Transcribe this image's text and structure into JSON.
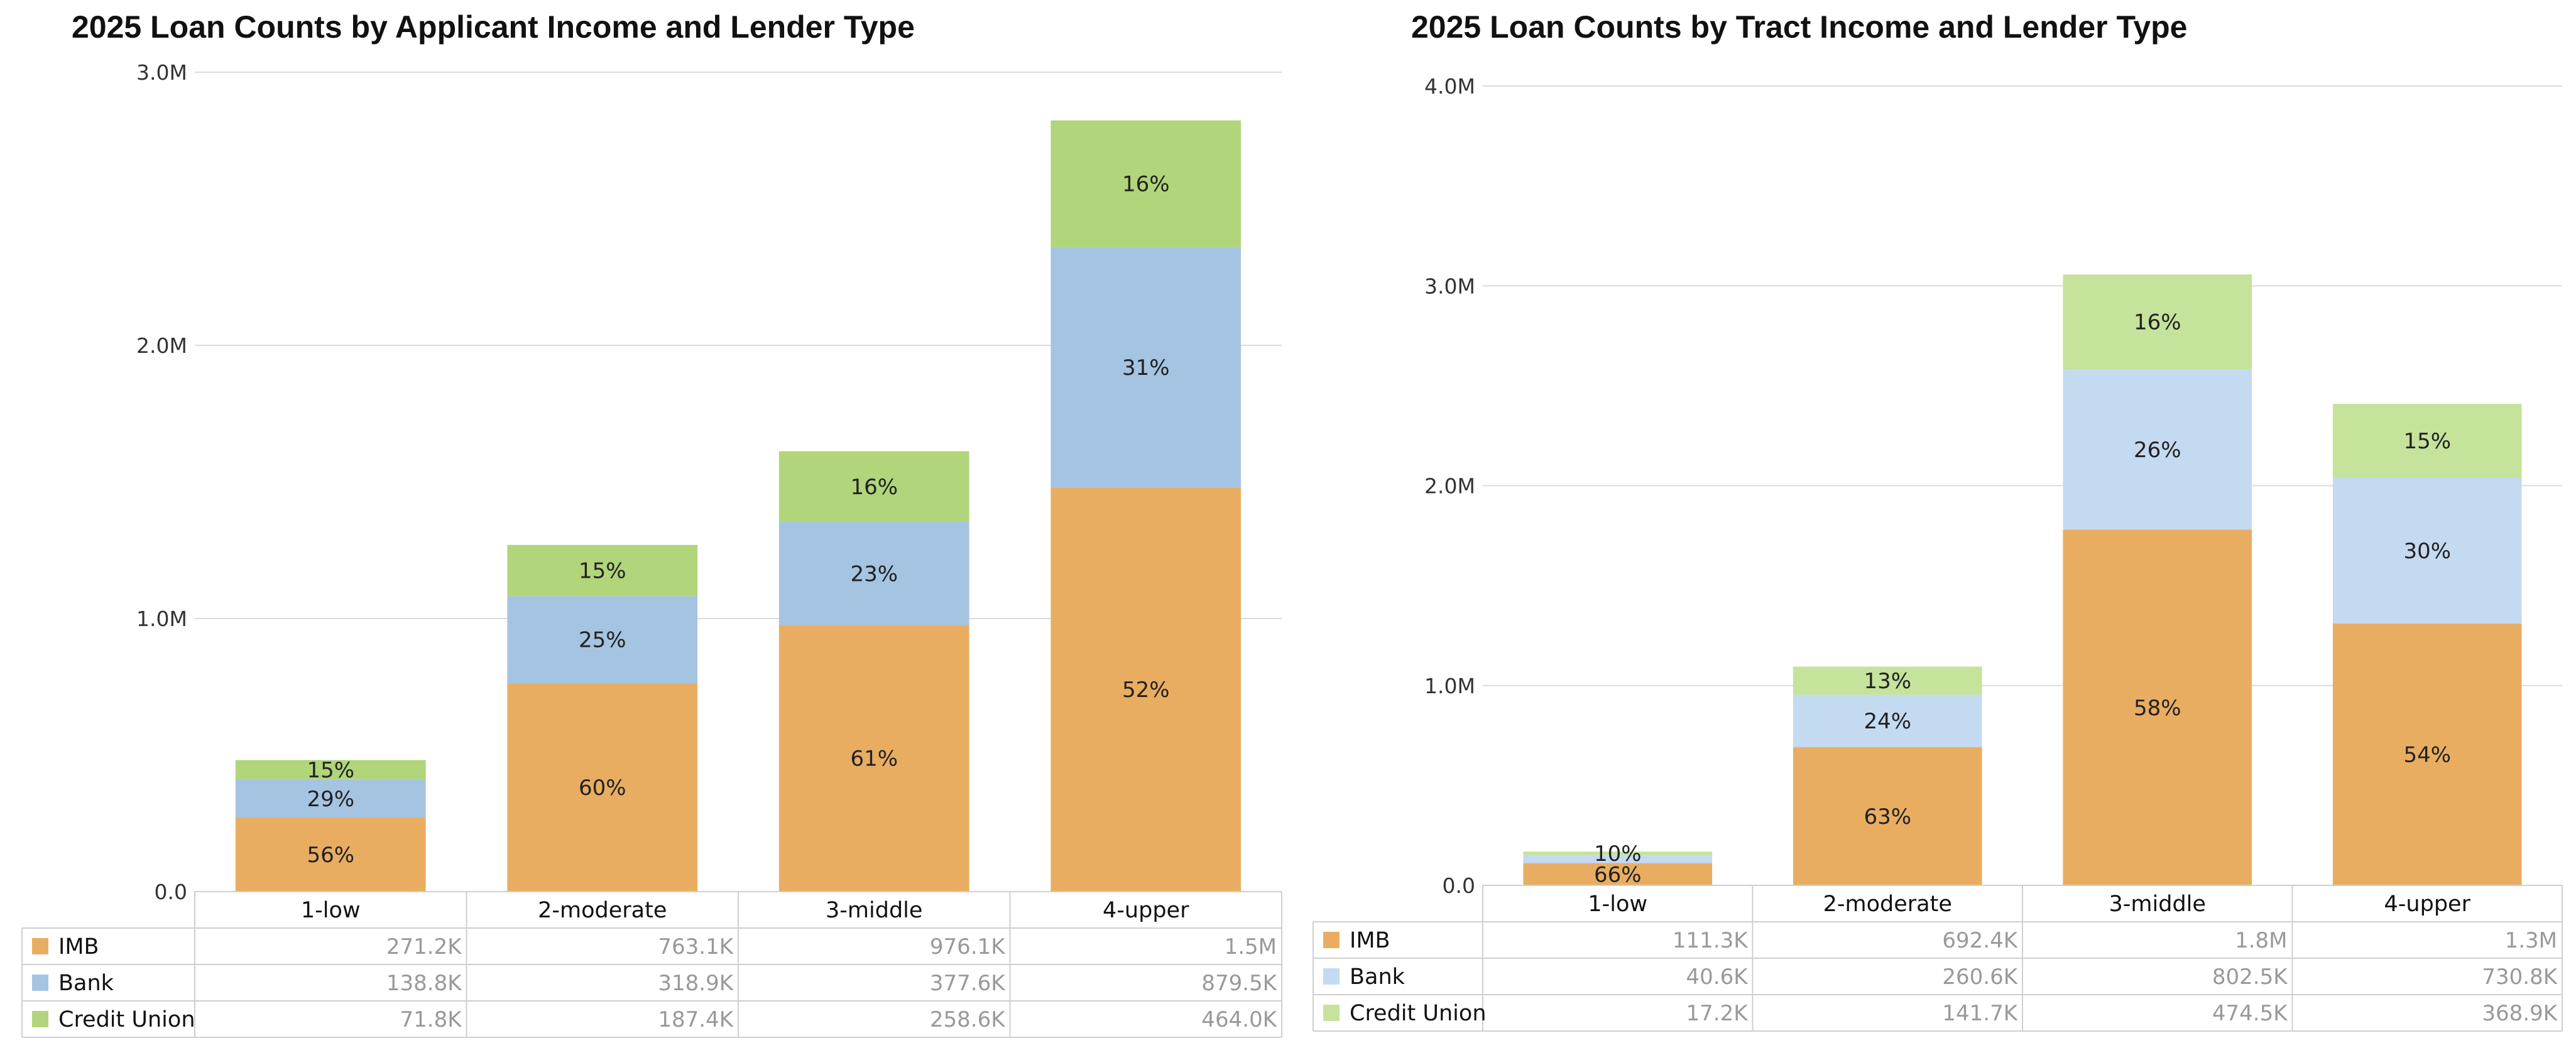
{
  "colors": {
    "left": {
      "IMB": "#e9ad62",
      "Bank": "#a4c4e2",
      "Credit Union": "#b1d57a"
    },
    "right": {
      "IMB": "#e9ad62",
      "Bank": "#c4daf1",
      "Credit Union": "#c5e39b"
    }
  },
  "chart_data": [
    {
      "type": "bar",
      "stacked": true,
      "title": "2025 Loan Counts by Applicant Income and Lender Type",
      "categories": [
        "1-low",
        "2-moderate",
        "3-middle",
        "4-upper"
      ],
      "ylim": [
        0,
        3000000
      ],
      "yticks": [
        0,
        1000000,
        2000000,
        3000000
      ],
      "ytick_labels": [
        "0.0",
        "1.0M",
        "2.0M",
        "3.0M"
      ],
      "grid": true,
      "legend": "table-below",
      "series": [
        {
          "name": "IMB",
          "values": [
            271200,
            763100,
            976100,
            1480000
          ],
          "pct_labels": [
            "56%",
            "60%",
            "61%",
            "52%"
          ],
          "table_labels": [
            "271.2K",
            "763.1K",
            "976.1K",
            "1.5M"
          ]
        },
        {
          "name": "Bank",
          "values": [
            138800,
            318900,
            377600,
            879500
          ],
          "pct_labels": [
            "29%",
            "25%",
            "23%",
            "31%"
          ],
          "table_labels": [
            "138.8K",
            "318.9K",
            "377.6K",
            "879.5K"
          ]
        },
        {
          "name": "Credit Union",
          "values": [
            71800,
            187400,
            258600,
            464000
          ],
          "pct_labels": [
            "15%",
            "15%",
            "16%",
            "16%"
          ],
          "table_labels": [
            "71.8K",
            "187.4K",
            "258.6K",
            "464.0K"
          ]
        }
      ]
    },
    {
      "type": "bar",
      "stacked": true,
      "title": "2025 Loan Counts by Tract Income and Lender Type",
      "categories": [
        "1-low",
        "2-moderate",
        "3-middle",
        "4-upper"
      ],
      "ylim": [
        0,
        4000000
      ],
      "yticks": [
        0,
        1000000,
        2000000,
        3000000,
        4000000
      ],
      "ytick_labels": [
        "0.0",
        "1.0M",
        "2.0M",
        "3.0M",
        "4.0M"
      ],
      "grid": true,
      "legend": "table-below",
      "series": [
        {
          "name": "IMB",
          "values": [
            111300,
            692400,
            1780000,
            1310000
          ],
          "pct_labels": [
            "66%",
            "63%",
            "58%",
            "54%"
          ],
          "table_labels": [
            "111.3K",
            "692.4K",
            "1.8M",
            "1.3M"
          ]
        },
        {
          "name": "Bank",
          "values": [
            40600,
            260600,
            802500,
            730800
          ],
          "pct_labels": [
            "",
            "24%",
            "26%",
            "30%"
          ],
          "table_labels": [
            "40.6K",
            "260.6K",
            "802.5K",
            "730.8K"
          ]
        },
        {
          "name": "Credit Union",
          "values": [
            17200,
            141700,
            474500,
            368900
          ],
          "pct_labels": [
            "10%",
            "13%",
            "16%",
            "15%"
          ],
          "table_labels": [
            "17.2K",
            "141.7K",
            "474.5K",
            "368.9K"
          ]
        }
      ]
    }
  ]
}
